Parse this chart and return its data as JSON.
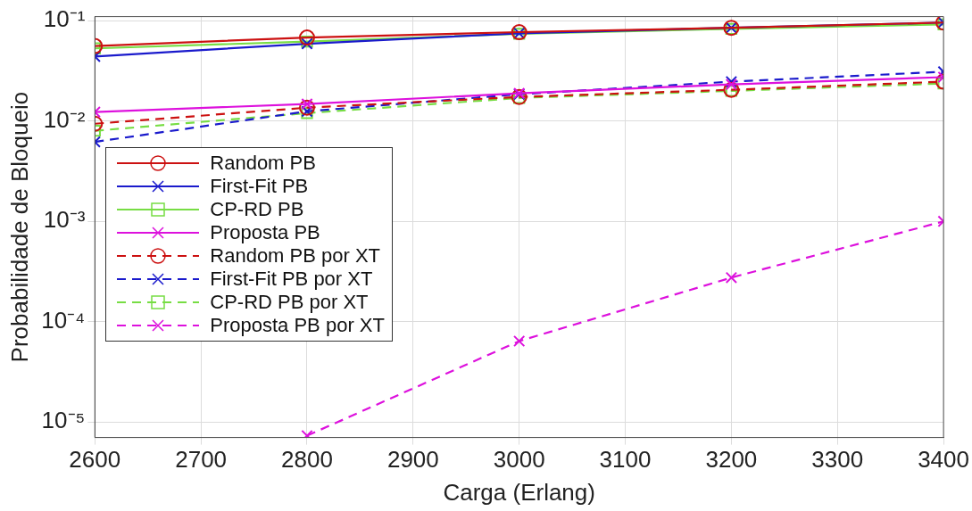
{
  "chart_data": {
    "type": "line",
    "xlabel": "Carga (Erlang)",
    "ylabel": "Probabilidade de Bloqueio",
    "x": [
      2600,
      2800,
      3000,
      3200,
      3400
    ],
    "xlim": [
      2600,
      3400
    ],
    "xticks": [
      2600,
      2700,
      2800,
      2900,
      3000,
      3100,
      3200,
      3300,
      3400
    ],
    "log": "y",
    "ylim": [
      7e-06,
      0.11
    ],
    "yticks": [
      {
        "value": 1e-05,
        "label": "10⁻⁵"
      },
      {
        "value": 0.0001,
        "label": "10⁻⁴"
      },
      {
        "value": 0.001,
        "label": "10⁻³"
      },
      {
        "value": 0.01,
        "label": "10⁻²"
      },
      {
        "value": 0.1,
        "label": "10⁻¹"
      }
    ],
    "grid": true,
    "legend": "left",
    "series": [
      {
        "name": "Random PB",
        "color": "#cc1111",
        "marker": "circle",
        "line_style": "solid",
        "values": [
          0.056,
          0.068,
          0.077,
          0.085,
          0.096
        ]
      },
      {
        "name": "First-Fit PB",
        "color": "#1a1acc",
        "marker": "cross",
        "line_style": "solid",
        "values": [
          0.044,
          0.059,
          0.075,
          0.085,
          0.096
        ]
      },
      {
        "name": "CP-RD PB",
        "color": "#77dd44",
        "marker": "square",
        "line_style": "solid",
        "values": [
          0.053,
          0.062,
          0.074,
          0.083,
          0.092
        ]
      },
      {
        "name": "Proposta PB",
        "color": "#dd11dd",
        "marker": "cross",
        "line_style": "solid",
        "values": [
          0.0123,
          0.0148,
          0.0189,
          0.0232,
          0.0274
        ]
      },
      {
        "name": "Random PB por XT",
        "color": "#cc1111",
        "marker": "circle",
        "line_style": "dashed",
        "values": [
          0.0094,
          0.0136,
          0.0174,
          0.0205,
          0.0247
        ]
      },
      {
        "name": "First-Fit PB por XT",
        "color": "#1a1acc",
        "marker": "cross",
        "line_style": "dashed",
        "values": [
          0.0062,
          0.0125,
          0.0185,
          0.0247,
          0.031
        ]
      },
      {
        "name": "CP-RD PB por XT",
        "color": "#77dd44",
        "marker": "square",
        "line_style": "dashed",
        "values": [
          0.008,
          0.012,
          0.017,
          0.02,
          0.0237
        ]
      },
      {
        "name": "Proposta PB por XT",
        "color": "#dd11dd",
        "marker": "cross",
        "line_style": "dashed",
        "values": [
          null,
          7.3e-06,
          6.4e-05,
          0.000275,
          0.001
        ]
      }
    ]
  }
}
